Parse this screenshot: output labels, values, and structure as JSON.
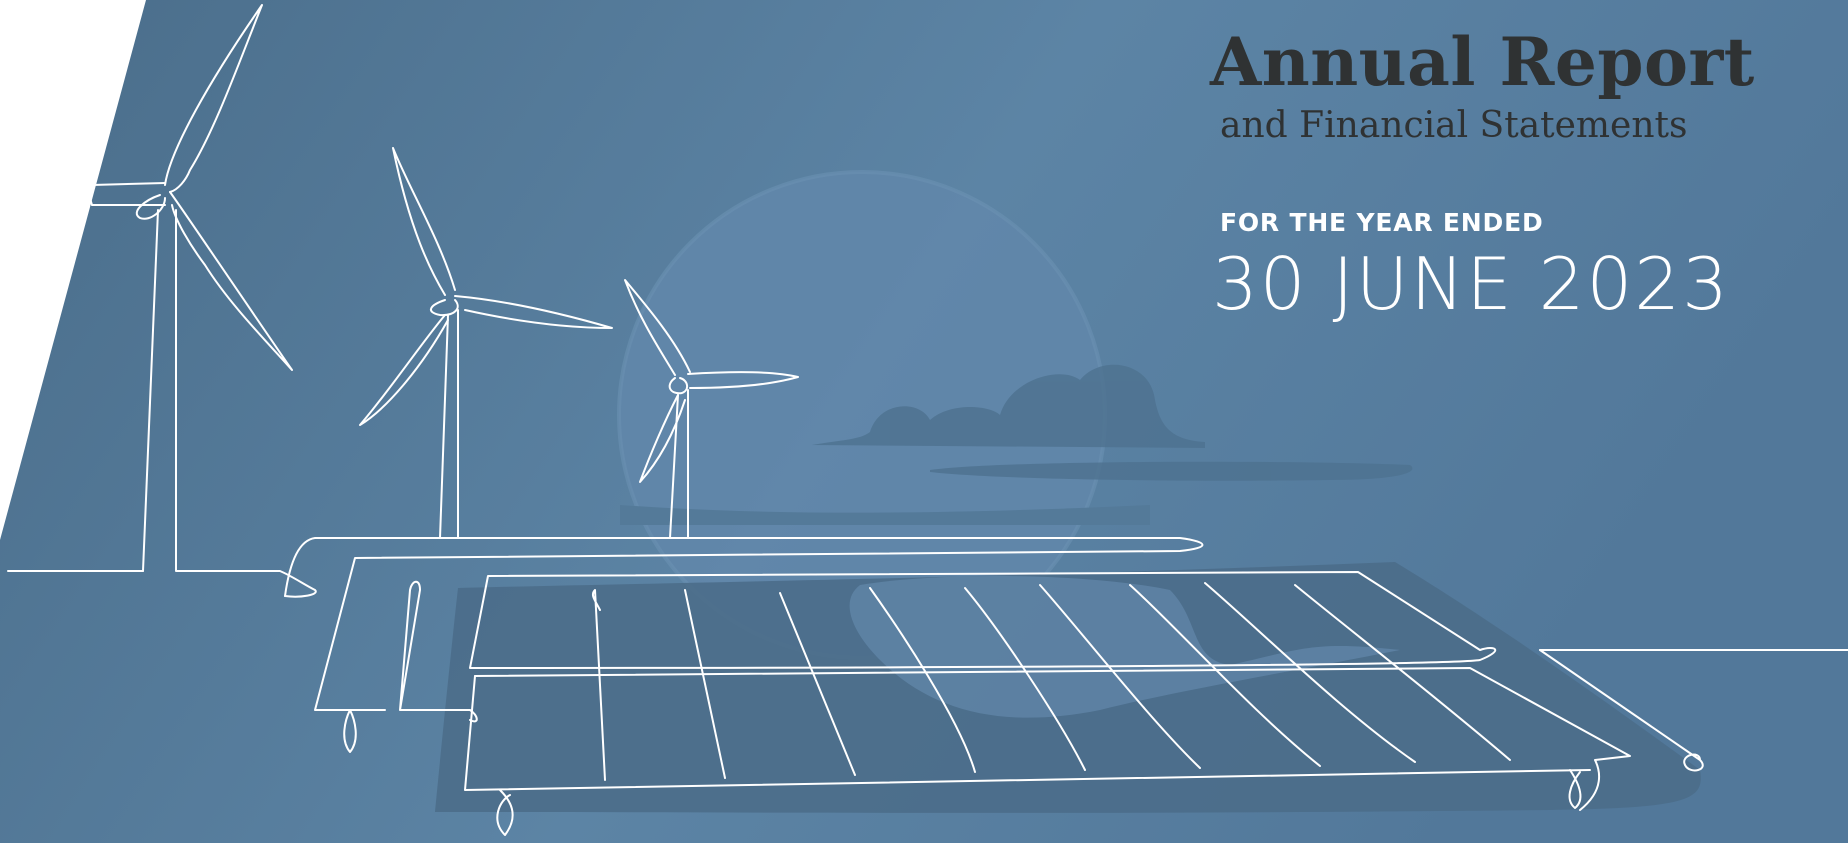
{
  "report": {
    "title": "Annual Report",
    "subtitle": "and Financial Statements",
    "period_label": "FOR THE YEAR ENDED",
    "period_date": "30 JUNE 2023"
  },
  "illustration": {
    "subject": "wind turbines and solar panels line drawing",
    "icons": [
      "wind-turbine-icon",
      "solar-panel-icon",
      "sun-icon",
      "cloud-icon"
    ]
  },
  "colors": {
    "background": "#547a99",
    "background_light": "#6a91b3",
    "sun": "#6a8fb1",
    "panel_shadow": "#4b6d89",
    "title_text": "#2f3233",
    "line_art": "#ffffff"
  }
}
